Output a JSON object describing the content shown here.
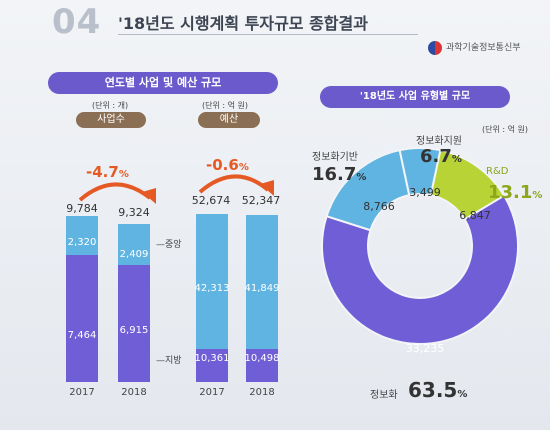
{
  "header": {
    "section_num": "04",
    "title": "'18년도 시행계획 투자규모 종합결과",
    "logo_text": "과학기술정보통신부"
  },
  "left_panel": {
    "title": "연도별 사업 및 예산 규모"
  },
  "right_panel": {
    "title": "'18년도 사업 유형별 규모",
    "unit": "(단위 : 억 원)"
  },
  "colors": {
    "upper": "#60b4e2",
    "lower": "#6f5ed6",
    "rnd": "#b7d335",
    "accent": "#e55a24",
    "pill": "#8a6f55"
  },
  "chart_data": [
    {
      "type": "bar",
      "name_pill": "사업수",
      "unit": "(단위 : 개)",
      "categories": [
        "2017",
        "2018"
      ],
      "series": [
        {
          "name": "중앙",
          "values": [
            2320,
            2409
          ],
          "labels": [
            "2,320",
            "2,409"
          ]
        },
        {
          "name": "지방",
          "values": [
            7464,
            6915
          ],
          "labels": [
            "7,464",
            "6,915"
          ]
        }
      ],
      "totals": [
        9784,
        9324
      ],
      "total_labels": [
        "9,784",
        "9,324"
      ],
      "change": {
        "value": "-4.7",
        "unit": "%"
      }
    },
    {
      "type": "bar",
      "name_pill": "예산",
      "unit": "(단위 : 억 원)",
      "categories": [
        "2017",
        "2018"
      ],
      "series": [
        {
          "name": "중앙",
          "values": [
            42313,
            41849
          ],
          "labels": [
            "42,313",
            "41,849"
          ]
        },
        {
          "name": "지방",
          "values": [
            10361,
            10498
          ],
          "labels": [
            "10,361",
            "10,498"
          ]
        }
      ],
      "totals": [
        52674,
        52347
      ],
      "total_labels": [
        "52,674",
        "52,347"
      ],
      "change": {
        "value": "-0.6",
        "unit": "%"
      }
    },
    {
      "type": "pie",
      "slices": [
        {
          "name": "정보화",
          "value": 33235,
          "value_label": "33,235",
          "pct": "63.5",
          "pct_unit": "%",
          "color": "#6f5ed6"
        },
        {
          "name": "정보화기반",
          "value": 8766,
          "value_label": "8,766",
          "pct": "16.7",
          "pct_unit": "%",
          "color": "#60b4e2"
        },
        {
          "name": "정보화지원",
          "value": 3499,
          "value_label": "3,499",
          "pct": "6.7",
          "pct_unit": "%",
          "color": "#60b4e2"
        },
        {
          "name": "R&D",
          "value": 6847,
          "value_label": "6,847",
          "pct": "13.1",
          "pct_unit": "%",
          "color": "#b7d335"
        }
      ]
    }
  ]
}
